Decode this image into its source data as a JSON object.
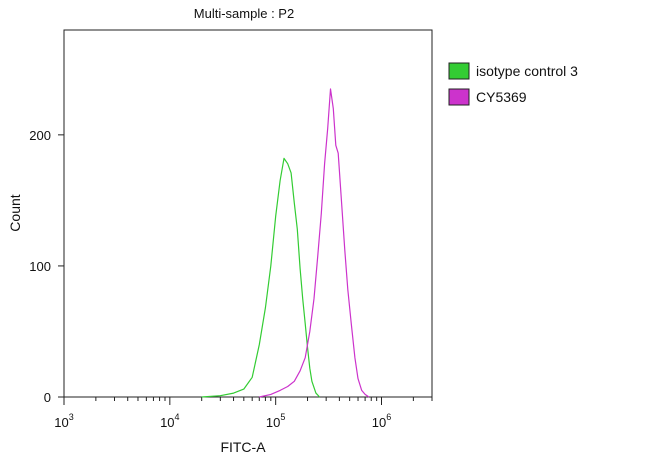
{
  "chart_data": {
    "type": "line",
    "title": "Multi-sample : P2",
    "xlabel": "FITC-A",
    "ylabel": "Count",
    "xscale": "log",
    "xlim": [
      1000,
      3000000
    ],
    "ylim": [
      0,
      280
    ],
    "x_ticks": [
      {
        "base": "10",
        "exp": "3",
        "value": 1000
      },
      {
        "base": "10",
        "exp": "4",
        "value": 10000
      },
      {
        "base": "10",
        "exp": "5",
        "value": 100000
      },
      {
        "base": "10",
        "exp": "6",
        "value": 1000000
      }
    ],
    "y_ticks": [
      {
        "label": "0",
        "value": 0
      },
      {
        "label": "100",
        "value": 100
      },
      {
        "label": "200",
        "value": 200
      }
    ],
    "legend_position": "top-right",
    "series": [
      {
        "name": "isotype control 3",
        "color": "#33cc33",
        "x": [
          20000,
          30000,
          40000,
          50000,
          60000,
          70000,
          80000,
          90000,
          100000,
          110000,
          120000,
          130000,
          140000,
          150000,
          160000,
          170000,
          180000,
          190000,
          200000,
          210000,
          220000,
          240000,
          260000
        ],
        "y": [
          0,
          1,
          3,
          6,
          15,
          40,
          68,
          100,
          138,
          165,
          182,
          178,
          171,
          148,
          128,
          98,
          75,
          56,
          38,
          22,
          12,
          3,
          0
        ]
      },
      {
        "name": "CY5369",
        "color": "#cc33cc",
        "x": [
          70000,
          90000,
          110000,
          130000,
          150000,
          170000,
          190000,
          210000,
          230000,
          250000,
          270000,
          290000,
          310000,
          330000,
          350000,
          370000,
          390000,
          420000,
          450000,
          480000,
          520000,
          560000,
          600000,
          650000,
          700000,
          760000
        ],
        "y": [
          0,
          2,
          5,
          8,
          12,
          20,
          30,
          50,
          75,
          108,
          140,
          178,
          205,
          235,
          220,
          192,
          186,
          148,
          112,
          82,
          55,
          30,
          14,
          5,
          2,
          0
        ]
      }
    ]
  }
}
